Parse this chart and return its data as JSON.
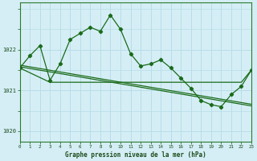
{
  "line1_x": [
    0,
    1,
    2,
    3,
    4,
    5,
    6,
    7,
    8,
    9,
    10,
    11,
    12,
    13,
    14,
    15,
    16,
    17,
    18,
    19,
    20,
    21,
    22,
    23
  ],
  "line1_y": [
    1021.55,
    1021.85,
    1022.1,
    1021.25,
    1021.65,
    1022.25,
    1022.4,
    1022.55,
    1022.45,
    1022.85,
    1022.5,
    1021.9,
    1021.6,
    1021.65,
    1021.75,
    1021.55,
    1021.3,
    1021.05,
    1020.75,
    1020.65,
    1020.6,
    1020.9,
    1021.1,
    1021.5
  ],
  "line2_x": [
    0,
    3,
    10,
    13,
    16,
    19,
    20,
    22,
    23
  ],
  "line2_y": [
    1021.55,
    1021.2,
    1021.2,
    1021.2,
    1021.2,
    1021.2,
    1021.2,
    1021.2,
    1021.5
  ],
  "line3_x": [
    0,
    23
  ],
  "line3_y": [
    1021.58,
    1020.62
  ],
  "line4_x": [
    0,
    23
  ],
  "line4_y": [
    1021.62,
    1020.66
  ],
  "bg_color": "#d5eef5",
  "line_color": "#1a6b1a",
  "grid_color": "#aed8e0",
  "grid_color_major": "#ffffff",
  "ylabel_ticks": [
    1020,
    1021,
    1022
  ],
  "xlabel": "Graphe pression niveau de la mer (hPa)",
  "xlim": [
    0,
    23
  ],
  "ylim": [
    1019.75,
    1023.15
  ],
  "xtick_labels": [
    "0",
    "1",
    "2",
    "3",
    "4",
    "5",
    "6",
    "7",
    "8",
    "9",
    "10",
    "11",
    "12",
    "13",
    "14",
    "15",
    "16",
    "17",
    "18",
    "19",
    "20",
    "21",
    "22",
    "23"
  ]
}
